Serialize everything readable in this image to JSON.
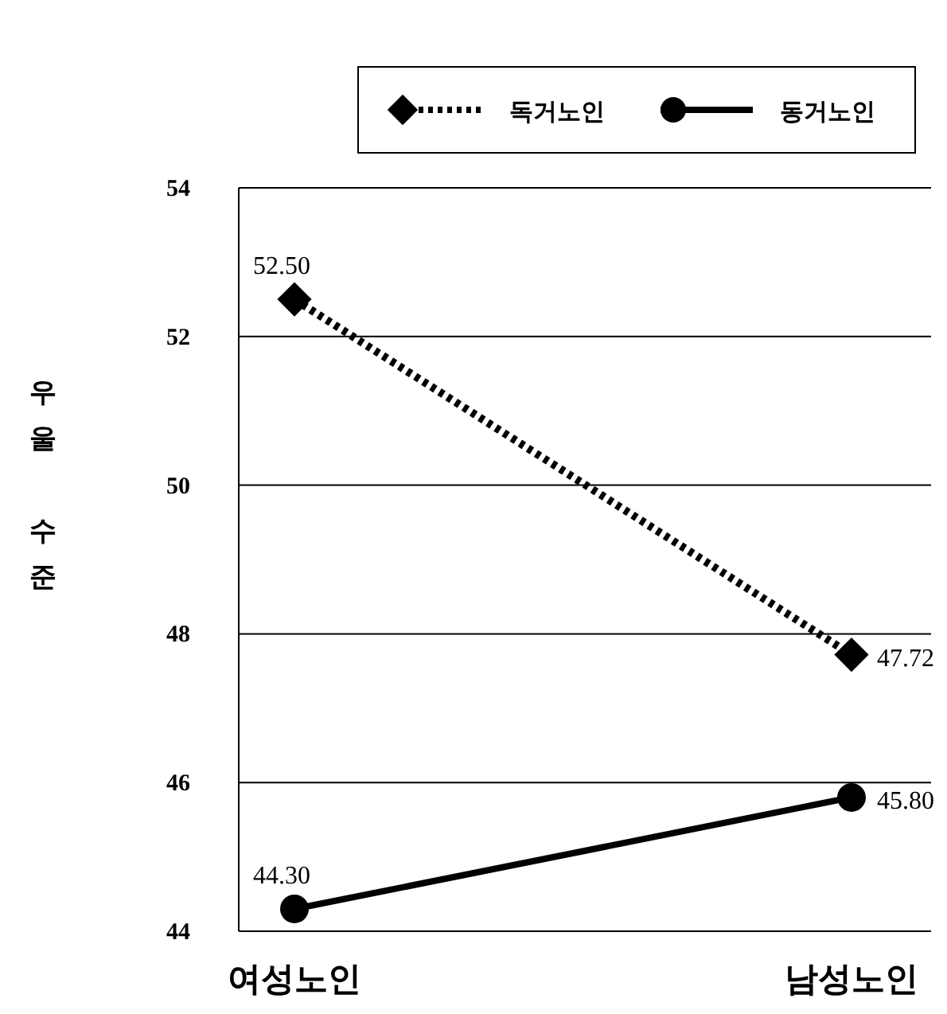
{
  "chart_data": {
    "type": "line",
    "ylabel": "우울 수준",
    "categories": [
      "여성노인",
      "남성노인"
    ],
    "series": [
      {
        "name": "독거노인",
        "color": "#000000",
        "values": [
          52.5,
          47.72
        ],
        "value_labels": [
          "52.50",
          "47.72"
        ],
        "marker": "diamond",
        "line_style": "dotted"
      },
      {
        "name": "동거노인",
        "color": "#000000",
        "values": [
          44.3,
          45.8
        ],
        "value_labels": [
          "44.30",
          "45.80"
        ],
        "marker": "circle",
        "line_style": "solid"
      }
    ],
    "ylim": [
      44,
      54
    ],
    "yticks": [
      44,
      46,
      48,
      50,
      52,
      54
    ],
    "grid": "y",
    "legend": "top"
  }
}
